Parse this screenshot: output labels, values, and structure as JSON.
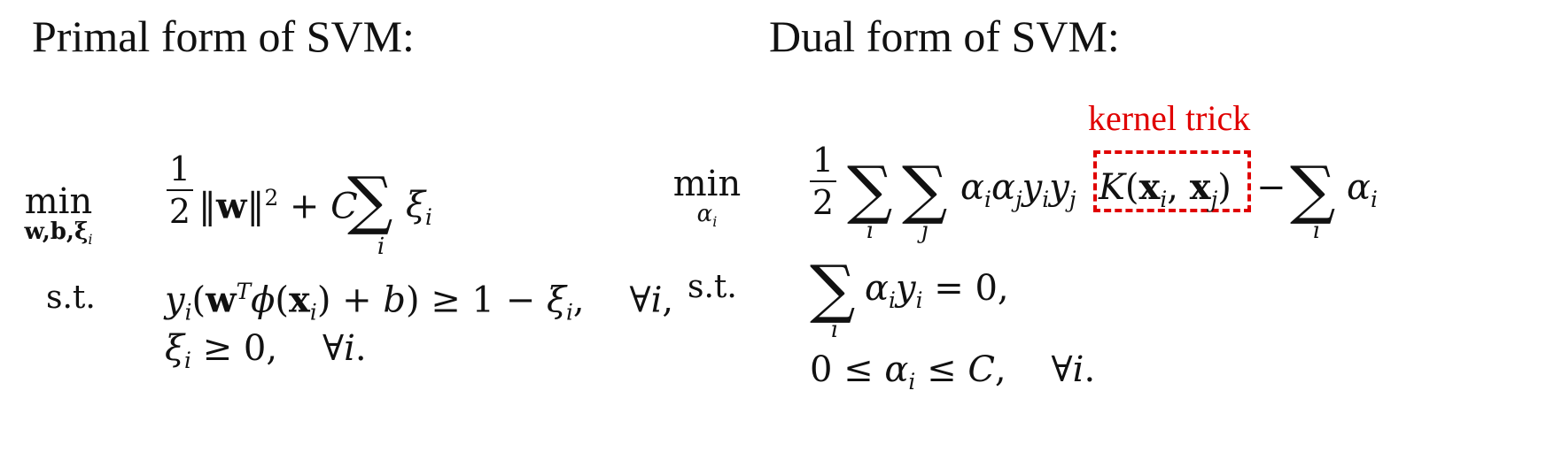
{
  "primal": {
    "heading": "Primal form of SVM:",
    "op": "min",
    "op_sub": "w,b,ξ",
    "op_sub_index": "i",
    "st_label": "s.t.",
    "frac_num": "1",
    "frac_den": "2",
    "sum_index": "i"
  },
  "dual": {
    "heading": "Dual form of SVM:",
    "op": "min",
    "op_sub": "α",
    "op_sub_index": "i",
    "st_label": "s.t.",
    "frac_num": "1",
    "frac_den": "2",
    "sum_index_1": "i",
    "sum_index_2": "j",
    "sum_index_3": "i",
    "sum_index_4": "i",
    "annotation": "kernel trick",
    "annotation_color": "#e00000"
  }
}
